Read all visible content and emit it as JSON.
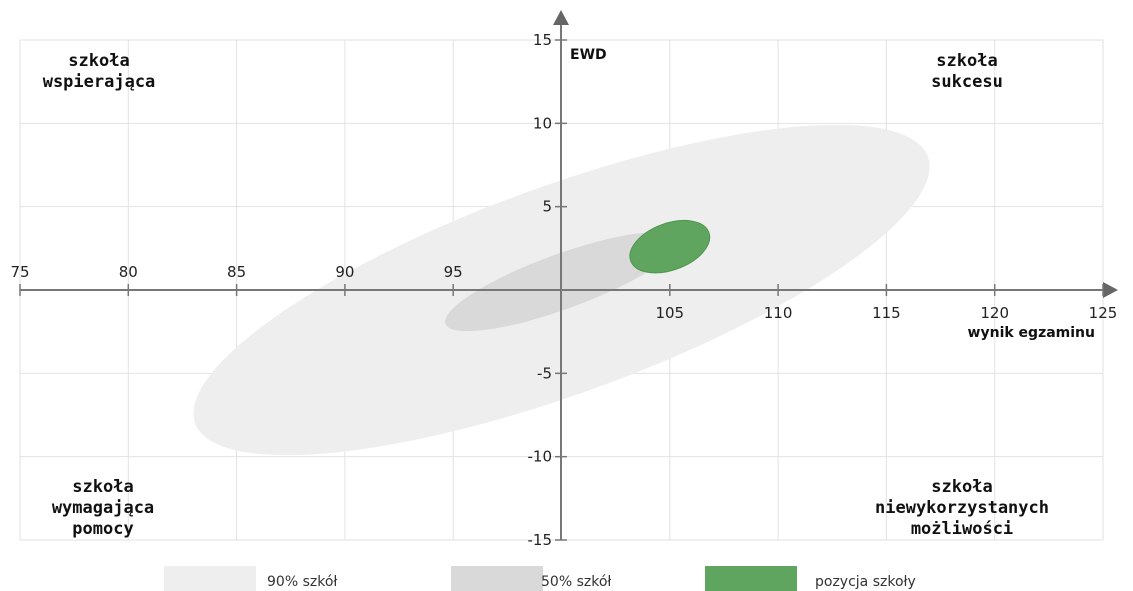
{
  "chart_data": {
    "type": "scatter",
    "xlabel": "wynik egzaminu",
    "ylabel": "EWD",
    "xlim": [
      75,
      125
    ],
    "ylim": [
      -15,
      15
    ],
    "x_ticks": [
      75,
      80,
      85,
      90,
      95,
      105,
      110,
      115,
      120,
      125
    ],
    "y_ticks": [
      15,
      10,
      5,
      -5,
      -10,
      -15
    ],
    "grid": true,
    "quadrant_labels": {
      "top_left": [
        "szkoła",
        "wspierająca"
      ],
      "top_right": [
        "szkoła",
        "sukcesu"
      ],
      "bottom_left": [
        "szkoła",
        "wymagająca",
        "pomocy"
      ],
      "bottom_right": [
        "szkoła",
        "niewykorzystanych",
        "możliwości"
      ]
    },
    "ellipses": [
      {
        "name": "90% szkół",
        "color": "#eeeeee",
        "points": [
          [
            82.5,
            -6.5
          ],
          [
            118.5,
            6.3
          ],
          [
            98,
            -1
          ],
          [
            105,
            2
          ],
          [
            90,
            -3.5
          ]
        ],
        "center": [
          100,
          0
        ],
        "x_extent": [
          82.5,
          118.5
        ],
        "y_extent": [
          -8.3,
          8.3
        ],
        "tilt_deg": 20
      },
      {
        "name": "50% szkół",
        "color": "#d9d9d9",
        "center": [
          100,
          0.5
        ],
        "x_extent": [
          94.7,
          106.1
        ],
        "y_extent": [
          -3,
          3
        ],
        "tilt_deg": 20
      },
      {
        "name": "pozycja szkoły",
        "color": "#5fa55f",
        "center": [
          105,
          2.6
        ],
        "x_extent": [
          103,
          107
        ],
        "y_extent": [
          0.8,
          4.4
        ],
        "tilt_deg": 20
      }
    ],
    "legend": [
      {
        "label": "90% szkół",
        "color": "#eeeeee"
      },
      {
        "label": "50% szkół",
        "color": "#d9d9d9"
      },
      {
        "label": "pozycja szkoły",
        "color": "#5fa55f"
      }
    ],
    "legend_position": "bottom"
  }
}
